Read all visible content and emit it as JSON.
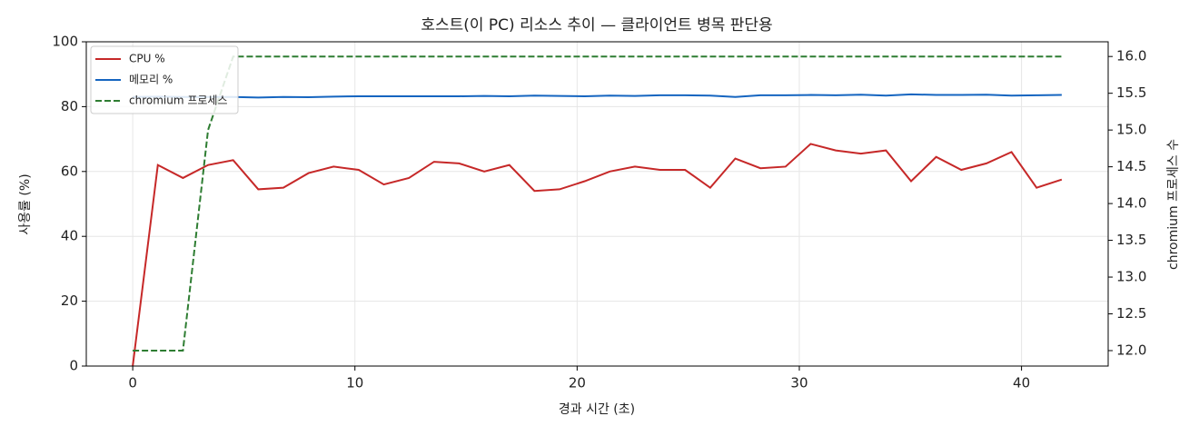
{
  "chart_data": {
    "type": "line",
    "title": "호스트(이 PC) 리소스 추이 — 클라이언트 병목 판단용",
    "x_label": "경과 시간 (초)",
    "y_label": "사용률 (%)",
    "y2_label": "chromium 프로세스 수",
    "x": [
      0,
      1.13,
      2.26,
      3.39,
      4.52,
      5.65,
      6.78,
      7.91,
      9.04,
      10.17,
      11.3,
      12.43,
      13.56,
      14.69,
      15.82,
      16.95,
      18.08,
      19.21,
      20.34,
      21.47,
      22.6,
      23.73,
      24.86,
      25.99,
      27.12,
      28.25,
      29.38,
      30.51,
      31.64,
      32.77,
      33.9,
      35.03,
      36.16,
      37.29,
      38.42,
      39.55,
      40.68,
      41.81
    ],
    "series": [
      {
        "name": "CPU %",
        "color": "#c62828",
        "linestyle": "solid",
        "axis": "y",
        "values": [
          0,
          62,
          58,
          62,
          63.5,
          54.5,
          55,
          59.5,
          61.5,
          60.5,
          56,
          58,
          63,
          62.5,
          60,
          62,
          54,
          54.5,
          57,
          60,
          61.5,
          60.5,
          60.5,
          55,
          64,
          61,
          61.5,
          68.5,
          66.5,
          65.5,
          66.5,
          57,
          64.5,
          60.5,
          62.5,
          66,
          55,
          57.5
        ]
      },
      {
        "name": "메모리 %",
        "color": "#1565c0",
        "linestyle": "solid",
        "axis": "y",
        "values": [
          83.0,
          83.1,
          83.0,
          83.0,
          83.0,
          82.8,
          83.0,
          82.9,
          83.1,
          83.2,
          83.2,
          83.2,
          83.2,
          83.2,
          83.3,
          83.2,
          83.4,
          83.3,
          83.2,
          83.4,
          83.3,
          83.5,
          83.5,
          83.4,
          83.0,
          83.5,
          83.5,
          83.6,
          83.5,
          83.7,
          83.4,
          83.8,
          83.6,
          83.6,
          83.7,
          83.4,
          83.5,
          83.6
        ]
      },
      {
        "name": "chromium 프로세스",
        "color": "#2e7d32",
        "linestyle": "dashed",
        "axis": "y2",
        "values": [
          12,
          12,
          12,
          15,
          16,
          16,
          16,
          16,
          16,
          16,
          16,
          16,
          16,
          16,
          16,
          16,
          16,
          16,
          16,
          16,
          16,
          16,
          16,
          16,
          16,
          16,
          16,
          16,
          16,
          16,
          16,
          16,
          16,
          16,
          16,
          16,
          16,
          16
        ]
      }
    ],
    "xlim": [
      -2.09,
      43.9
    ],
    "xticks": [
      0,
      10,
      20,
      30,
      40
    ],
    "ylim": [
      0,
      100
    ],
    "yticks": [
      0,
      20,
      40,
      60,
      80,
      100
    ],
    "y2lim": [
      11.79,
      16.2
    ],
    "y2ticks": [
      {
        "value": 12,
        "label": "12.0"
      },
      12.5,
      {
        "value": 13,
        "label": "13.0"
      },
      13.5,
      {
        "value": 14,
        "label": "14.0"
      },
      14.5,
      {
        "value": 15,
        "label": "15.0"
      },
      15.5,
      {
        "value": 16,
        "label": "16.0"
      }
    ],
    "grid": true,
    "legend": "upper left"
  }
}
